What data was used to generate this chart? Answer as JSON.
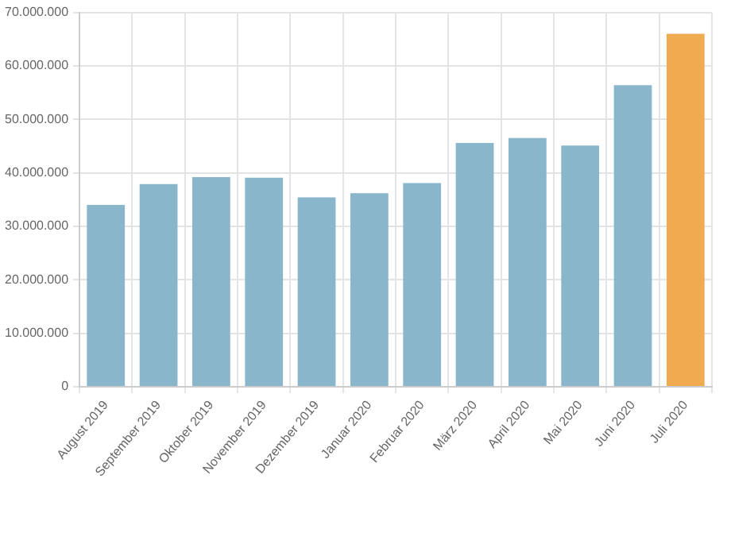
{
  "chart_data": {
    "type": "bar",
    "categories": [
      "August 2019",
      "September 2019",
      "Oktober 2019",
      "November 2019",
      "Dezember 2019",
      "Januar 2020",
      "Februar 2020",
      "März 2020",
      "April 2020",
      "Mai 2020",
      "Juni 2020",
      "Juli 2020"
    ],
    "values": [
      34000000,
      37900000,
      39200000,
      39100000,
      35400000,
      36200000,
      38100000,
      45600000,
      46500000,
      45100000,
      56400000,
      66000000
    ],
    "colors": [
      "#8ab6cc",
      "#8ab6cc",
      "#8ab6cc",
      "#8ab6cc",
      "#8ab6cc",
      "#8ab6cc",
      "#8ab6cc",
      "#8ab6cc",
      "#8ab6cc",
      "#8ab6cc",
      "#8ab6cc",
      "#f0aa50"
    ],
    "ylim": [
      0,
      70000000
    ],
    "yticks": [
      {
        "value": 0,
        "label": "0"
      },
      {
        "value": 10000000,
        "label": "10.000.000"
      },
      {
        "value": 20000000,
        "label": "20.000.000"
      },
      {
        "value": 30000000,
        "label": "30.000.000"
      },
      {
        "value": 40000000,
        "label": "40.000.000"
      },
      {
        "value": 50000000,
        "label": "50.000.000"
      },
      {
        "value": 60000000,
        "label": "60.000.000"
      },
      {
        "value": 70000000,
        "label": "70.000.000"
      }
    ],
    "grid": true,
    "legend": false
  }
}
